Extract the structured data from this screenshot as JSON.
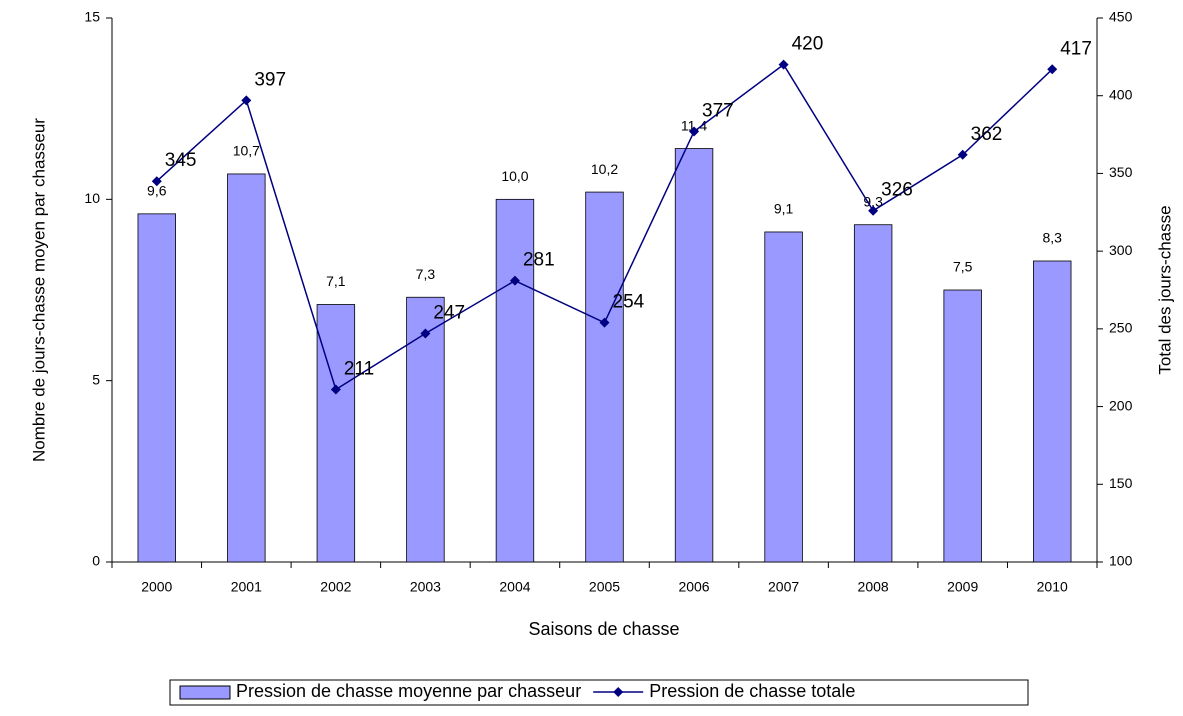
{
  "chart_data": {
    "type": "bar",
    "categories": [
      "2000",
      "2001",
      "2002",
      "2003",
      "2004",
      "2005",
      "2006",
      "2007",
      "2008",
      "2009",
      "2010"
    ],
    "series": [
      {
        "name": "Pression de chasse moyenne par chasseur",
        "type": "bar",
        "color": "#9999ff",
        "values": [
          9.6,
          10.7,
          7.1,
          7.3,
          10.0,
          10.2,
          11.4,
          9.1,
          9.3,
          7.5,
          8.3
        ],
        "value_labels": [
          "9,6",
          "10,7",
          "7,1",
          "7,3",
          "10,0",
          "10,2",
          "11,4",
          "9,1",
          "9,3",
          "7,5",
          "8,3"
        ]
      },
      {
        "name": "Pression de chasse totale",
        "type": "line",
        "axis": "y2",
        "color": "#000080",
        "values": [
          345,
          397,
          211,
          247,
          281,
          254,
          377,
          420,
          326,
          362,
          417
        ]
      }
    ],
    "xlabel": "Saisons de chasse",
    "ylabel": "Nombre de jours-chasse moyen par chasseur",
    "y2label": "Total des jours-chasse",
    "ylim": [
      0,
      15
    ],
    "yticks": [
      0,
      5,
      10,
      15
    ],
    "y2lim": [
      100,
      450
    ],
    "y2ticks": [
      100,
      150,
      200,
      250,
      300,
      350,
      400,
      450
    ],
    "legend": "bottom"
  }
}
